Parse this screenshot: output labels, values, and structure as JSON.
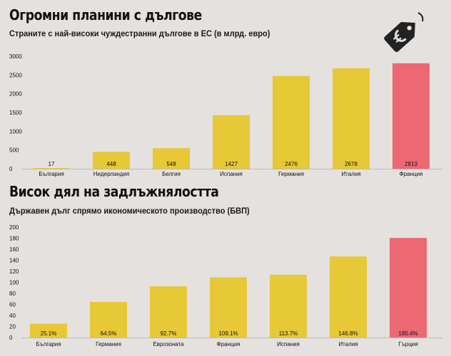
{
  "chart_data": [
    {
      "type": "bar",
      "title": "Огромни планини с дългове",
      "subtitle": "Страните с най-високи чуждестранни дългове в ЕС (в млрд. евро)",
      "categories": [
        "България",
        "Нидерландия",
        "Белгия",
        "Испания",
        "Германия",
        "Италия",
        "Франция"
      ],
      "values": [
        17,
        448,
        548,
        1427,
        2476,
        2678,
        2813
      ],
      "value_labels": [
        "17",
        "448",
        "548",
        "1427",
        "2476",
        "2678",
        "2813"
      ],
      "yticks": [
        "0",
        "500",
        "1000",
        "1500",
        "2000",
        "2500",
        "3000"
      ],
      "ytick_values": [
        0,
        500,
        1000,
        1500,
        2000,
        2500,
        3000
      ],
      "ylim": [
        0,
        3000
      ],
      "xlabel": "",
      "ylabel": "",
      "grid": false,
      "highlight_index": 6
    },
    {
      "type": "bar",
      "title": "Висок дял на задлъжнялостта",
      "subtitle": "Държавен дълг спрямо икономическото производство (БВП)",
      "categories": [
        "България",
        "Германия",
        "Еврозоната",
        "Франция",
        "Испания",
        "Италия",
        "Гърция"
      ],
      "values": [
        25.1,
        64.5,
        92.7,
        109.1,
        113.7,
        146.8,
        180.4
      ],
      "value_labels": [
        "25.1%",
        "64.5%",
        "92.7%",
        "109.1%",
        "113.7%",
        "146.8%",
        "180.4%"
      ],
      "yticks": [
        "0",
        "20",
        "40",
        "60",
        "80",
        "100",
        "120",
        "140",
        "160",
        "180",
        "200"
      ],
      "ytick_values": [
        0,
        20,
        40,
        60,
        80,
        100,
        120,
        140,
        160,
        180,
        200
      ],
      "ylim": [
        0,
        200
      ],
      "xlabel": "",
      "ylabel": "",
      "grid": false,
      "highlight_index": 6
    }
  ],
  "colors": {
    "bar": "#e7c837",
    "highlight": "#ec6873",
    "background": "#e4e1df",
    "baseline": "#bdb9b5",
    "icon": "#222222"
  },
  "icon": "euro-price-tag-icon"
}
